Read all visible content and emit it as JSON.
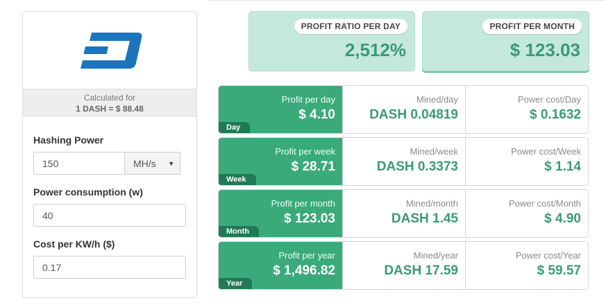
{
  "coin": {
    "logo_icon": "dash-logo-icon"
  },
  "calc": {
    "caption": "Calculated for",
    "rate": "1 DASH = $ 88.48"
  },
  "form": {
    "hashing_power": {
      "label": "Hashing Power",
      "value": "150",
      "unit": "MH/s"
    },
    "power_consumption": {
      "label": "Power consumption (w)",
      "value": "40"
    },
    "cost_per_kwh": {
      "label": "Cost per KW/h ($)",
      "value": "0.17"
    }
  },
  "summary": {
    "ratio": {
      "label": "PROFIT RATIO PER DAY",
      "value": "2,512%"
    },
    "month": {
      "label": "PROFIT PER MONTH",
      "value": "$ 123.03"
    }
  },
  "rows": [
    {
      "tag": "Day",
      "profit_label": "Profit per day",
      "profit": "$ 4.10",
      "mined_label": "Mined/day",
      "mined": "DASH 0.04819",
      "power_label": "Power cost/Day",
      "power": "$ 0.1632"
    },
    {
      "tag": "Week",
      "profit_label": "Profit per week",
      "profit": "$ 28.71",
      "mined_label": "Mined/week",
      "mined": "DASH 0.3373",
      "power_label": "Power cost/Week",
      "power": "$ 1.14"
    },
    {
      "tag": "Month",
      "profit_label": "Profit per month",
      "profit": "$ 123.03",
      "mined_label": "Mined/month",
      "mined": "DASH 1.45",
      "power_label": "Power cost/Month",
      "power": "$ 4.90"
    },
    {
      "tag": "Year",
      "profit_label": "Profit per year",
      "profit": "$ 1,496.82",
      "mined_label": "Mined/year",
      "mined": "DASH 17.59",
      "power_label": "Power cost/Year",
      "power": "$ 59.57"
    }
  ],
  "colors": {
    "accent": "#3aaa7a",
    "accent_dark": "#217a55",
    "value_text": "#3a9a74",
    "summary_bg": "#c5e8dc",
    "logo_blue": "#1c75bc"
  }
}
